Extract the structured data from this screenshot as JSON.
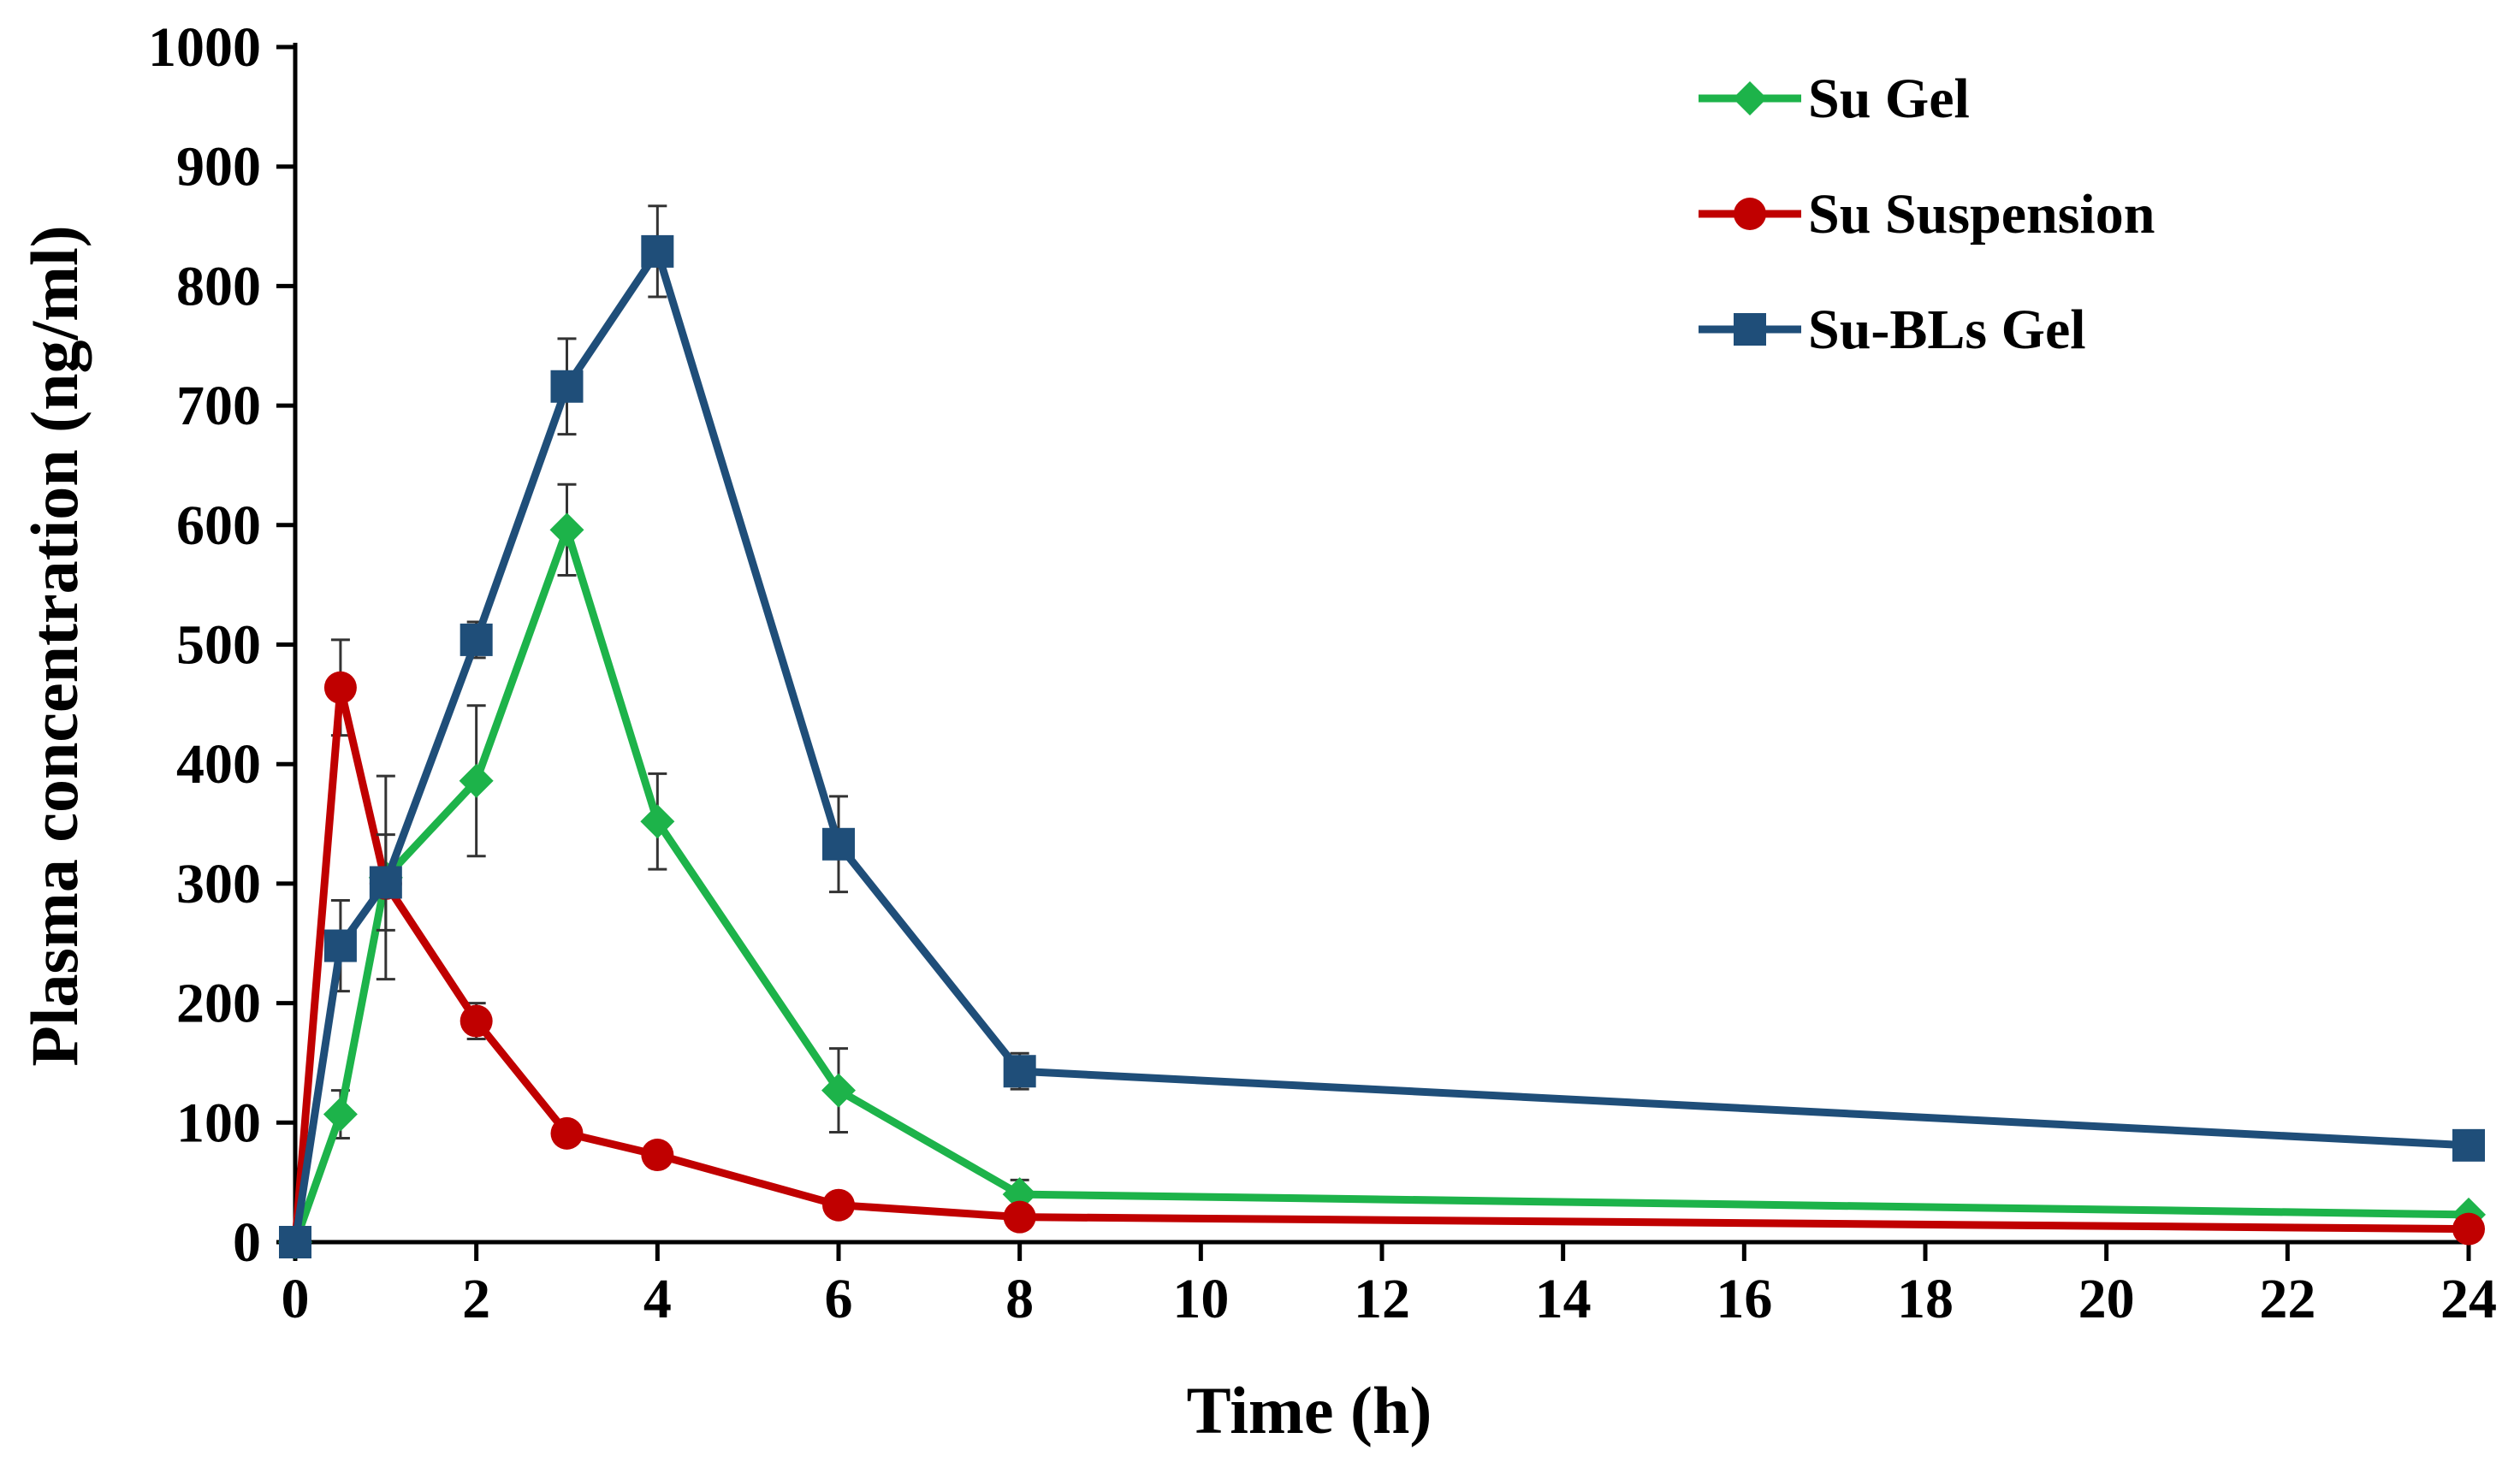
{
  "chart_data": {
    "type": "line",
    "title": "",
    "xlabel": "Time (h)",
    "ylabel": "Plasma concentration (ng/ml)",
    "xlim": [
      0,
      24
    ],
    "ylim": [
      0,
      1000
    ],
    "xticks": [
      "0",
      "2",
      "4",
      "6",
      "8",
      "10",
      "12",
      "14",
      "16",
      "18",
      "20",
      "22",
      "24"
    ],
    "yticks": [
      "0",
      "100",
      "200",
      "300",
      "400",
      "500",
      "600",
      "700",
      "800",
      "900",
      "1000"
    ],
    "grid": false,
    "legend_position": "top-right",
    "x": [
      0,
      0.5,
      1,
      2,
      3,
      4,
      6,
      8,
      24
    ],
    "series": [
      {
        "name": "Su Gel",
        "color": "#1db34a",
        "marker": "diamond",
        "values": [
          0,
          107,
          305,
          386,
          596,
          352,
          127,
          40,
          23
        ],
        "errors": [
          0,
          20,
          85,
          63,
          38,
          40,
          35,
          12,
          5
        ]
      },
      {
        "name": "Su Suspension",
        "color": "#c00000",
        "marker": "circle",
        "values": [
          0,
          464,
          300,
          185,
          91,
          73,
          31,
          21,
          11
        ],
        "errors": [
          0,
          40,
          10,
          15,
          8,
          6,
          5,
          4,
          3
        ]
      },
      {
        "name": "Su-BLs Gel",
        "color": "#1f4e79",
        "marker": "square",
        "values": [
          0,
          248,
          301,
          504,
          716,
          829,
          333,
          143,
          81
        ],
        "errors": [
          0,
          38,
          40,
          15,
          40,
          38,
          40,
          15,
          6
        ]
      }
    ]
  }
}
